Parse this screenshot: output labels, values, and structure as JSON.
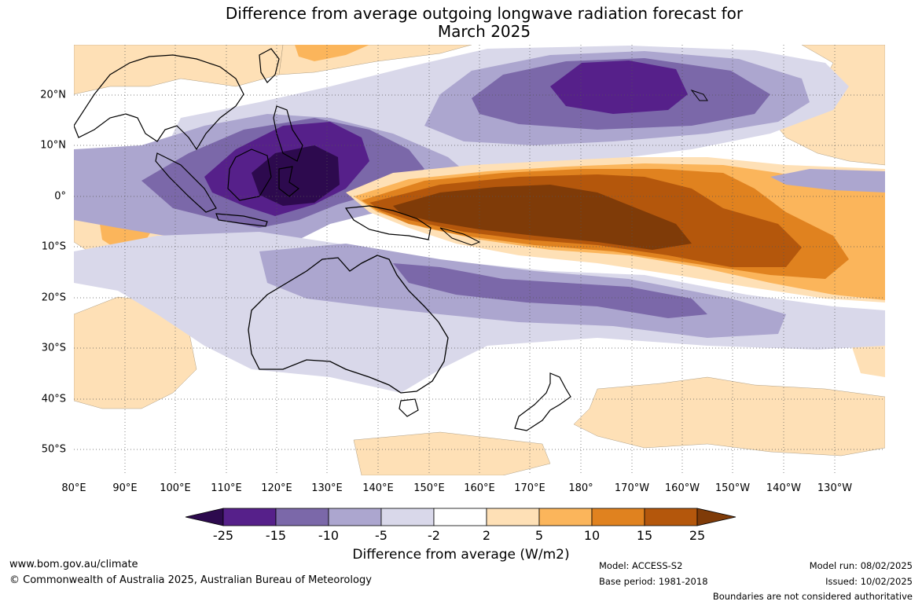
{
  "title": {
    "line1": "Difference from average outgoing longwave radiation forecast for",
    "line2": "March 2025"
  },
  "map": {
    "longitude_labels": [
      "80°E",
      "90°E",
      "100°E",
      "110°E",
      "120°E",
      "130°E",
      "140°E",
      "150°E",
      "160°E",
      "170°E",
      "180°",
      "170°W",
      "160°W",
      "150°W",
      "140°W",
      "130°W"
    ],
    "latitude_labels": [
      "20°N",
      "10°N",
      "0°",
      "10°S",
      "20°S",
      "30°S",
      "40°S",
      "50°S"
    ],
    "extent": {
      "lon_min_east": 80,
      "lon_max_east": 240,
      "lat_min": -55,
      "lat_max": 30
    },
    "features": [
      "Outgoing longwave radiation anomaly contours",
      "Australia",
      "New Zealand",
      "Maritime Continent",
      "South-East Asia coastlines"
    ]
  },
  "colorbar": {
    "tick_labels": [
      "-25",
      "-15",
      "-10",
      "-5",
      "-2",
      "2",
      "5",
      "10",
      "15",
      "25"
    ],
    "colors": [
      "#2d0a4e",
      "#56208a",
      "#7b68a9",
      "#aca6cf",
      "#d9d8ea",
      "#ffffff",
      "#fee0b6",
      "#fbb55b",
      "#e0821f",
      "#b4570c",
      "#7f3b08"
    ],
    "title": "Difference from average (W/m2)"
  },
  "footer": {
    "website": "www.bom.gov.au/climate",
    "copyright": "© Commonwealth of Australia 2025, Australian Bureau of Meteorology",
    "model": "Model: ACCESS-S2",
    "base_period": "Base period: 1981-2018",
    "model_run": "Model run: 08/02/2025",
    "issued": "Issued: 10/02/2025",
    "disclaimer": "Boundaries are not considered authoritative"
  }
}
